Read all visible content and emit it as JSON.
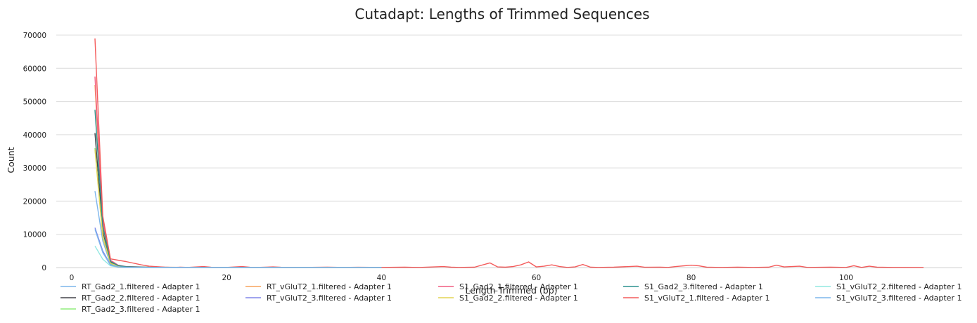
{
  "chart_data": {
    "type": "line",
    "title": "Cutadapt: Lengths of Trimmed Sequences",
    "xlabel": "Length Trimmed (bp)",
    "ylabel": "Count",
    "xlim": [
      -2,
      115
    ],
    "ylim": [
      0,
      70000
    ],
    "xticks": [
      0,
      20,
      40,
      60,
      80,
      100
    ],
    "yticks": [
      0,
      10000,
      20000,
      30000,
      40000,
      50000,
      60000,
      70000
    ],
    "grid": "horizontal",
    "legend": "bottom",
    "series": [
      {
        "name": "RT_Gad2_1.filtered - Adapter 1",
        "color": "#7cb5ec",
        "points": [
          [
            3,
            23000
          ],
          [
            4,
            8000
          ],
          [
            5,
            1000
          ],
          [
            6,
            300
          ],
          [
            7,
            100
          ],
          [
            10,
            50
          ],
          [
            15,
            40
          ],
          [
            20,
            30
          ],
          [
            25,
            20
          ],
          [
            30,
            10
          ],
          [
            40,
            5
          ]
        ]
      },
      {
        "name": "RT_Gad2_2.filtered - Adapter 1",
        "color": "#434348",
        "points": [
          [
            3,
            40500
          ],
          [
            4,
            11000
          ],
          [
            5,
            1500
          ],
          [
            6,
            500
          ],
          [
            7,
            200
          ],
          [
            8,
            100
          ],
          [
            10,
            50
          ],
          [
            15,
            40
          ],
          [
            20,
            30
          ],
          [
            30,
            10
          ],
          [
            40,
            5
          ]
        ]
      },
      {
        "name": "RT_Gad2_3.filtered - Adapter 1",
        "color": "#90ed7d",
        "points": [
          [
            3,
            36000
          ],
          [
            4,
            9500
          ],
          [
            5,
            1200
          ],
          [
            6,
            400
          ],
          [
            7,
            150
          ],
          [
            10,
            60
          ],
          [
            15,
            40
          ],
          [
            20,
            30
          ],
          [
            30,
            10
          ],
          [
            40,
            5
          ]
        ]
      },
      {
        "name": "RT_vGluT2_1.filtered - Adapter 1",
        "color": "#f7a35c",
        "points": [
          [
            3,
            55000
          ],
          [
            4,
            12000
          ],
          [
            5,
            2000
          ],
          [
            6,
            600
          ],
          [
            7,
            250
          ],
          [
            10,
            80
          ],
          [
            15,
            50
          ],
          [
            20,
            30
          ],
          [
            30,
            10
          ],
          [
            40,
            5
          ]
        ]
      },
      {
        "name": "RT_vGluT2_3.filtered - Adapter 1",
        "color": "#8085e9",
        "points": [
          [
            3,
            12000
          ],
          [
            4,
            5000
          ],
          [
            5,
            800
          ],
          [
            6,
            200
          ],
          [
            7,
            80
          ],
          [
            10,
            40
          ],
          [
            15,
            20
          ],
          [
            20,
            10
          ],
          [
            30,
            5
          ],
          [
            40,
            2
          ]
        ]
      },
      {
        "name": "S1_Gad2_1.filtered - Adapter 1",
        "color": "#f15c80",
        "points": [
          [
            3,
            57500
          ],
          [
            4,
            14000
          ],
          [
            5,
            2200
          ],
          [
            6,
            700
          ],
          [
            7,
            300
          ],
          [
            10,
            100
          ],
          [
            15,
            60
          ],
          [
            20,
            40
          ],
          [
            30,
            20
          ],
          [
            40,
            10
          ]
        ]
      },
      {
        "name": "S1_Gad2_2.filtered - Adapter 1",
        "color": "#e4d354",
        "points": [
          [
            3,
            35500
          ],
          [
            4,
            9000
          ],
          [
            5,
            1300
          ],
          [
            6,
            450
          ],
          [
            7,
            200
          ],
          [
            10,
            80
          ],
          [
            15,
            50
          ],
          [
            20,
            30
          ],
          [
            30,
            10
          ],
          [
            40,
            5
          ]
        ]
      },
      {
        "name": "S1_Gad2_3.filtered - Adapter 1",
        "color": "#2b908f",
        "points": [
          [
            3,
            47500
          ],
          [
            4,
            12500
          ],
          [
            5,
            1800
          ],
          [
            6,
            600
          ],
          [
            7,
            250
          ],
          [
            10,
            90
          ],
          [
            15,
            60
          ],
          [
            20,
            40
          ],
          [
            30,
            20
          ],
          [
            40,
            10
          ]
        ]
      },
      {
        "name": "S1_vGluT2_1.filtered - Adapter 1",
        "color": "#f45b5b",
        "points": [
          [
            3,
            69000
          ],
          [
            4,
            15500
          ],
          [
            5,
            2600
          ],
          [
            7,
            1800
          ],
          [
            9,
            800
          ],
          [
            10,
            400
          ],
          [
            12,
            100
          ],
          [
            13,
            50
          ],
          [
            14,
            100
          ],
          [
            15,
            40
          ],
          [
            17,
            300
          ],
          [
            18,
            80
          ],
          [
            20,
            50
          ],
          [
            22,
            300
          ],
          [
            23,
            80
          ],
          [
            24,
            50
          ],
          [
            26,
            200
          ],
          [
            27,
            80
          ],
          [
            30,
            50
          ],
          [
            33,
            100
          ],
          [
            35,
            50
          ],
          [
            37,
            80
          ],
          [
            40,
            50
          ],
          [
            43,
            100
          ],
          [
            44,
            60
          ],
          [
            45,
            50
          ],
          [
            48,
            300
          ],
          [
            49,
            100
          ],
          [
            50,
            50
          ],
          [
            52,
            100
          ],
          [
            54,
            1400
          ],
          [
            55,
            200
          ],
          [
            56,
            100
          ],
          [
            57,
            300
          ],
          [
            58,
            800
          ],
          [
            59,
            1700
          ],
          [
            60,
            200
          ],
          [
            61,
            400
          ],
          [
            62,
            800
          ],
          [
            63,
            300
          ],
          [
            64,
            50
          ],
          [
            65,
            200
          ],
          [
            66,
            900
          ],
          [
            67,
            100
          ],
          [
            68,
            50
          ],
          [
            70,
            100
          ],
          [
            73,
            400
          ],
          [
            74,
            80
          ],
          [
            76,
            100
          ],
          [
            77,
            50
          ],
          [
            78,
            300
          ],
          [
            80,
            700
          ],
          [
            81,
            500
          ],
          [
            82,
            100
          ],
          [
            84,
            50
          ],
          [
            86,
            100
          ],
          [
            88,
            50
          ],
          [
            90,
            100
          ],
          [
            91,
            700
          ],
          [
            92,
            200
          ],
          [
            94,
            400
          ],
          [
            95,
            50
          ],
          [
            98,
            100
          ],
          [
            100,
            50
          ],
          [
            101,
            550
          ],
          [
            102,
            50
          ],
          [
            103,
            400
          ],
          [
            104,
            100
          ],
          [
            106,
            50
          ],
          [
            110,
            20
          ]
        ]
      },
      {
        "name": "S1_vGluT2_2.filtered - Adapter 1",
        "color": "#91e8e1",
        "points": [
          [
            3,
            6500
          ],
          [
            4,
            2500
          ],
          [
            5,
            500
          ],
          [
            6,
            150
          ],
          [
            7,
            60
          ],
          [
            10,
            30
          ],
          [
            15,
            20
          ],
          [
            20,
            10
          ],
          [
            30,
            5
          ],
          [
            40,
            2
          ]
        ]
      },
      {
        "name": "S1_vGluT2_3.filtered - Adapter 1",
        "color": "#7cb5ec",
        "points": [
          [
            3,
            11500
          ],
          [
            4,
            4500
          ],
          [
            5,
            700
          ],
          [
            6,
            200
          ],
          [
            7,
            80
          ],
          [
            10,
            40
          ],
          [
            15,
            20
          ],
          [
            20,
            10
          ],
          [
            30,
            5
          ],
          [
            40,
            2
          ]
        ]
      }
    ]
  }
}
